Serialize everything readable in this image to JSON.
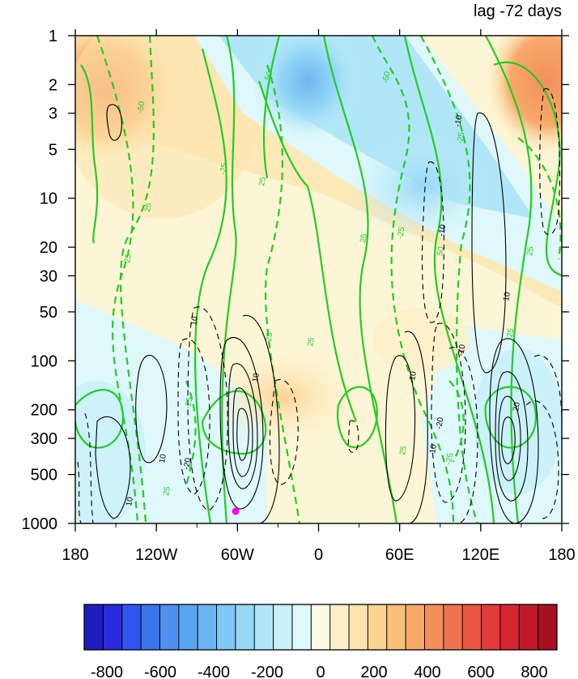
{
  "chart_data": {
    "type": "heatmap",
    "title": "lag -72 days",
    "x_ticks": [
      "180",
      "120W",
      "60W",
      "0",
      "60E",
      "120E",
      "180"
    ],
    "y_ticks": [
      "1",
      "2",
      "3",
      "5",
      "10",
      "20",
      "30",
      "50",
      "100",
      "200",
      "300",
      "500",
      "1000"
    ],
    "y_scale": "log",
    "ylim": [
      1000,
      1
    ],
    "xlim": [
      -180,
      180
    ],
    "colorbar": {
      "labels": [
        "-800",
        "-600",
        "-400",
        "-200",
        "0",
        "200",
        "400",
        "600",
        "800"
      ],
      "colors": [
        "#1f1fbf",
        "#2a2ae0",
        "#2f55ee",
        "#3a76ec",
        "#4f8fee",
        "#5aa5ef",
        "#6cb6f2",
        "#80c8f5",
        "#97d8f7",
        "#b0e6f8",
        "#c8f0f9",
        "#dff8fb",
        "#fdfbe5",
        "#fdf0c8",
        "#fde3ad",
        "#fcd291",
        "#f9bf7b",
        "#f7a96a",
        "#f48f5c",
        "#f0734f",
        "#eb5544",
        "#e33a3a",
        "#d62630",
        "#c11a2a",
        "#a8101f"
      ]
    },
    "contour_labels": {
      "green": [
        "50",
        "-50",
        "25",
        "-25",
        "25",
        "50",
        "-50",
        "25",
        "-25",
        "25",
        "25",
        "-25",
        "50",
        "-25",
        "25",
        "-25",
        "25",
        "-25",
        "25"
      ],
      "black": [
        "10",
        "-10",
        "10",
        "-10",
        "10",
        "10",
        "-10",
        "-20",
        "10",
        "20",
        "-20",
        "10",
        "10"
      ]
    },
    "marker": {
      "lon": -60,
      "p": 850,
      "color": "#ff00ff"
    }
  }
}
